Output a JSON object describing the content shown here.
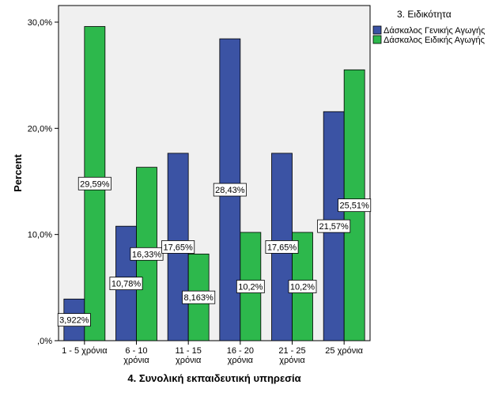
{
  "chart_data": {
    "type": "bar",
    "xlabel": "4. Συνολική εκπαιδευτική υπηρεσία",
    "ylabel": "Percent",
    "ylim": [
      0,
      32
    ],
    "yticks": [
      {
        "value": 0,
        "label": ",0%"
      },
      {
        "value": 10,
        "label": "10,0%"
      },
      {
        "value": 20,
        "label": "20,0%"
      },
      {
        "value": 30,
        "label": "30,0%"
      }
    ],
    "categories": [
      [
        "1 - 5 χρόνια"
      ],
      [
        "6 - 10",
        "χρόνια"
      ],
      [
        "11 - 15",
        "χρόνια"
      ],
      [
        "16 - 20",
        "χρόνια"
      ],
      [
        "21 - 25",
        "χρόνια"
      ],
      [
        "25 χρόνια"
      ]
    ],
    "legend_title": "3. Ειδικότητα",
    "legend_position": "top-right",
    "grid": false,
    "series": [
      {
        "name": "Δάσκαλος Γενικής Αγωγής",
        "color": "#3b53a4",
        "values": [
          3.922,
          10.78,
          17.65,
          28.43,
          17.65,
          21.57
        ],
        "labels": [
          "3,922%",
          "10,78%",
          "17,65%",
          "28,43%",
          "17,65%",
          "21,57%"
        ]
      },
      {
        "name": "Δάσκαλος Ειδικής Αγωγής",
        "color": "#2db84c",
        "values": [
          29.59,
          16.33,
          8.163,
          10.2,
          10.2,
          25.51
        ],
        "labels": [
          "29,59%",
          "16,33%",
          "8,163%",
          "10,2%",
          "10,2%",
          "25,51%"
        ]
      }
    ],
    "plot_background": "#f0f0f0"
  }
}
